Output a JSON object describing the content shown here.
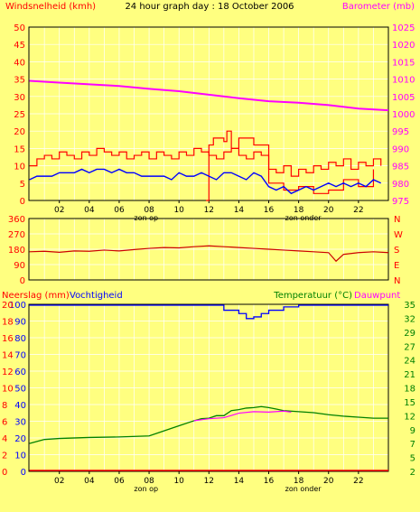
{
  "colors": {
    "background": "#ffff80",
    "frame": "#000000",
    "grid": "#ffffff",
    "wind": "#ff0000",
    "gust": "#ff0000",
    "wind_avg": "#0000ff",
    "barometer": "#ff00ff",
    "direction": "#cc0000",
    "rain": "#ff0000",
    "humidity": "#0000ff",
    "temperature": "#008000",
    "dewpoint": "#ff00ff",
    "label_wind": "#ff0000",
    "label_baro": "#ff00ff",
    "label_temp": "#008000",
    "label_dir": "#ff0000",
    "label_rain": "#ff0000",
    "label_hum": "#0000ff"
  },
  "chart_data": [
    {
      "type": "line",
      "title": "24 hour graph day : 18 October 2006",
      "ylabel": "Windsnelheid (kmh)",
      "y2label": "Barometer (mb)",
      "xticks": [
        "02",
        "04",
        "06",
        "08",
        "10",
        "12",
        "14",
        "16",
        "18",
        "20",
        "22"
      ],
      "xannotations": [
        "zon op",
        "zon onder"
      ],
      "annotation_hours": [
        7.8,
        18.3
      ],
      "xlim": [
        0,
        24
      ],
      "ylim": [
        0,
        50
      ],
      "yticks": [
        "0",
        "5",
        "10",
        "15",
        "20",
        "25",
        "30",
        "35",
        "40",
        "45",
        "50"
      ],
      "y2lim": [
        975,
        1025
      ],
      "y2ticks": [
        "975",
        "980",
        "985",
        "990",
        "995",
        "1000",
        "1005",
        "1010",
        "1015",
        "1020",
        "1025"
      ],
      "series": [
        {
          "role": "barometer",
          "axis": "right",
          "x": [
            0,
            2,
            4,
            6,
            8,
            10,
            12,
            14,
            16,
            18,
            20,
            22,
            24
          ],
          "values": [
            1009.5,
            1009,
            1008.5,
            1008,
            1007.2,
            1006.5,
            1005.5,
            1004.5,
            1003.6,
            1003.2,
            1002.5,
            1001.5,
            1001
          ]
        },
        {
          "role": "wind",
          "axis": "left",
          "x": [
            0,
            0.5,
            1,
            1.5,
            2,
            2.5,
            3,
            3.5,
            4,
            4.5,
            5,
            5.5,
            6,
            6.5,
            7,
            7.5,
            8,
            8.5,
            9,
            9.5,
            10,
            10.5,
            11,
            11.5,
            12,
            12.5,
            13,
            13.5,
            14,
            14.5,
            15,
            15.5,
            16,
            16.5,
            17,
            17.5,
            18,
            18.5,
            19,
            19.5,
            20,
            20.5,
            21,
            21.5,
            22,
            22.5,
            23,
            23.5
          ],
          "values": [
            10,
            12,
            13,
            12,
            14,
            13,
            12,
            14,
            13,
            15,
            14,
            13,
            14,
            12,
            13,
            14,
            12,
            14,
            13,
            12,
            14,
            13,
            15,
            14,
            13,
            12,
            14,
            15,
            13,
            12,
            14,
            13,
            9,
            8,
            10,
            7,
            9,
            8,
            10,
            9,
            11,
            10,
            12,
            9,
            11,
            10,
            12,
            10
          ]
        },
        {
          "role": "gust",
          "axis": "left",
          "x": [
            11.8,
            12,
            12.3,
            13,
            13.2,
            13.5,
            14,
            15,
            16,
            17,
            18,
            19,
            20,
            21,
            22,
            23
          ],
          "values": [
            0,
            16,
            18,
            17,
            20,
            15,
            18,
            16,
            5,
            3,
            4,
            2,
            3,
            6,
            4,
            9
          ]
        },
        {
          "role": "wind_avg",
          "axis": "left",
          "x": [
            0,
            0.5,
            1,
            1.5,
            2,
            2.5,
            3,
            3.5,
            4,
            4.5,
            5,
            5.5,
            6,
            6.5,
            7,
            7.5,
            8,
            8.5,
            9,
            9.5,
            10,
            10.5,
            11,
            11.5,
            12,
            12.5,
            13,
            13.5,
            14,
            14.5,
            15,
            15.5,
            16,
            16.5,
            17,
            17.5,
            18,
            18.5,
            19,
            19.5,
            20,
            20.5,
            21,
            21.5,
            22,
            22.5,
            23,
            23.5
          ],
          "values": [
            6,
            7,
            7,
            7,
            8,
            8,
            8,
            9,
            8,
            9,
            9,
            8,
            9,
            8,
            8,
            7,
            7,
            7,
            7,
            6,
            8,
            7,
            7,
            8,
            7,
            6,
            8,
            8,
            7,
            6,
            8,
            7,
            4,
            3,
            4,
            2,
            3,
            4,
            3,
            4,
            5,
            4,
            5,
            4,
            5,
            4,
            6,
            5
          ]
        }
      ]
    },
    {
      "type": "line",
      "title": "",
      "xlim": [
        0,
        24
      ],
      "ylim": [
        0,
        360
      ],
      "yticks": [
        "0",
        "90",
        "180",
        "270",
        "360"
      ],
      "y2ticks": [
        "N",
        "E",
        "S",
        "W",
        "N"
      ],
      "series": [
        {
          "role": "direction",
          "x": [
            0,
            1,
            2,
            3,
            4,
            5,
            6,
            7,
            8,
            9,
            10,
            11,
            12,
            13,
            14,
            15,
            16,
            17,
            18,
            19,
            20,
            20.5,
            21,
            22,
            23,
            24
          ],
          "values": [
            165,
            168,
            162,
            170,
            168,
            175,
            170,
            178,
            185,
            190,
            188,
            195,
            200,
            195,
            190,
            185,
            180,
            175,
            170,
            165,
            160,
            110,
            150,
            160,
            165,
            160
          ]
        }
      ]
    },
    {
      "type": "line",
      "title": "",
      "ylabel": "Neerslag (mm)",
      "ylabel2": "Vochtigheid",
      "y2label": "Temperatuur (°C)",
      "y2label2": "Dauwpunt",
      "xticks": [
        "02",
        "04",
        "06",
        "08",
        "10",
        "12",
        "14",
        "16",
        "18",
        "20",
        "22"
      ],
      "xannotations": [
        "zon op",
        "zon onder"
      ],
      "annotation_hours": [
        7.8,
        18.3
      ],
      "xlim": [
        0,
        24
      ],
      "yticks_rain": [
        "0",
        "2",
        "4",
        "6",
        "8",
        "10",
        "12",
        "14",
        "16",
        "18",
        "20"
      ],
      "yticks_hum": [
        "0",
        "10",
        "20",
        "30",
        "40",
        "50",
        "60",
        "70",
        "80",
        "90",
        "100"
      ],
      "y2lim": [
        2,
        35
      ],
      "y2ticks": [
        "2",
        "5",
        "7",
        "9",
        "12",
        "15",
        "18",
        "21",
        "24",
        "27",
        "29",
        "32",
        "35"
      ],
      "series": [
        {
          "role": "rain",
          "axis": "left",
          "x": [
            0,
            24
          ],
          "values": [
            0,
            0
          ]
        },
        {
          "role": "humidity",
          "axis": "left",
          "x": [
            0,
            12,
            13,
            14,
            14.5,
            15,
            15.5,
            16,
            17,
            18,
            24
          ],
          "values": [
            100,
            100,
            97,
            95,
            92,
            93,
            95,
            97,
            99,
            100,
            100
          ]
        },
        {
          "role": "temperature",
          "axis": "right",
          "x": [
            0,
            1,
            2,
            4,
            6,
            8,
            9,
            10,
            11,
            11.5,
            12,
            12.5,
            13,
            13.5,
            14,
            14.5,
            15,
            15.5,
            16,
            16.5,
            17,
            18,
            19,
            20,
            21,
            22,
            23,
            24
          ],
          "values": [
            7.5,
            8.3,
            8.5,
            8.7,
            8.8,
            9,
            10,
            11,
            12,
            12.4,
            12.5,
            13,
            13,
            14,
            14.2,
            14.5,
            14.6,
            14.8,
            14.6,
            14.3,
            14,
            13.8,
            13.6,
            13.2,
            12.9,
            12.7,
            12.5,
            12.5
          ]
        },
        {
          "role": "dewpoint",
          "axis": "right",
          "x": [
            11,
            12,
            13,
            14,
            15,
            16,
            17,
            17.5
          ],
          "values": [
            12,
            12.4,
            12.6,
            13.5,
            13.8,
            13.7,
            13.9,
            13.7
          ]
        }
      ]
    }
  ]
}
